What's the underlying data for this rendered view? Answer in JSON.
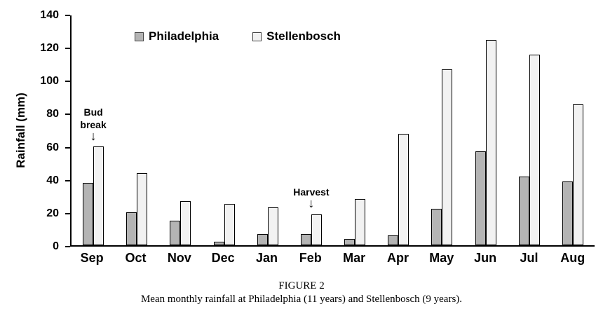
{
  "chart_data": {
    "type": "bar",
    "title": "",
    "categories": [
      "Sep",
      "Oct",
      "Nov",
      "Dec",
      "Jan",
      "Feb",
      "Mar",
      "Apr",
      "May",
      "Jun",
      "Jul",
      "Aug"
    ],
    "series": [
      {
        "name": "Philadelphia",
        "color": "#b4b4b4",
        "values": [
          38,
          20,
          15,
          2,
          7,
          7,
          4,
          6,
          22,
          57,
          42,
          39
        ]
      },
      {
        "name": "Stellenbosch",
        "color": "#f2f2f2",
        "values": [
          60,
          44,
          27,
          25,
          23,
          19,
          28,
          68,
          107,
          125,
          116,
          86
        ]
      }
    ],
    "xlabel": "",
    "ylabel": "Rainfall (mm)",
    "ylim": [
      0,
      140
    ],
    "ytick_step": 20,
    "grid": false,
    "legend_position": "top-inside",
    "annotations": [
      {
        "label": "Bud break",
        "category": "Sep",
        "arrow_tip_value": 63
      },
      {
        "label": "Harvest",
        "category": "Feb",
        "arrow_tip_value": 22
      }
    ]
  },
  "caption": {
    "figure_label": "FIGURE 2",
    "text": "Mean monthly rainfall at Philadelphia (11 years) and Stellenbosch (9 years)."
  }
}
